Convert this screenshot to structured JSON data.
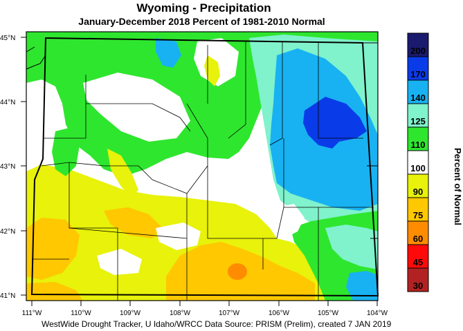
{
  "title": "Wyoming - Precipitation",
  "subtitle": "January-December 2018  Percent of 1981-2010 Normal",
  "footer": "WestWide Drought Tracker, U Idaho/WRCC Data Source: PRISM (Prelim), created  7 JAN 2019",
  "lat_labels": [
    "45°N",
    "44°N",
    "43°N",
    "42°N",
    "41°N"
  ],
  "lon_labels": [
    "111°W",
    "110°W",
    "109°W",
    "108°W",
    "107°W",
    "106°W",
    "105°W",
    "104°W"
  ],
  "colorbar": {
    "title": "Percent of Normal",
    "tick_labels": [
      "200",
      "170",
      "140",
      "125",
      "110",
      "100",
      "90",
      "75",
      "60",
      "45",
      "30"
    ],
    "colors": [
      "#1a1a6e",
      "#0a3be8",
      "#18b2f2",
      "#80f2cc",
      "#2ee62e",
      "#ffffff",
      "#e8f20a",
      "#ffc800",
      "#ff8c00",
      "#ff0a0a",
      "#b22222"
    ]
  },
  "palette": {
    "white": "#ffffff",
    "green": "#2ee62e",
    "aqua": "#80f2cc",
    "sky": "#18b2f2",
    "blue": "#0a3be8",
    "yellow": "#e8f20a",
    "orange": "#ffc800",
    "dark_orange": "#ff8c00"
  }
}
